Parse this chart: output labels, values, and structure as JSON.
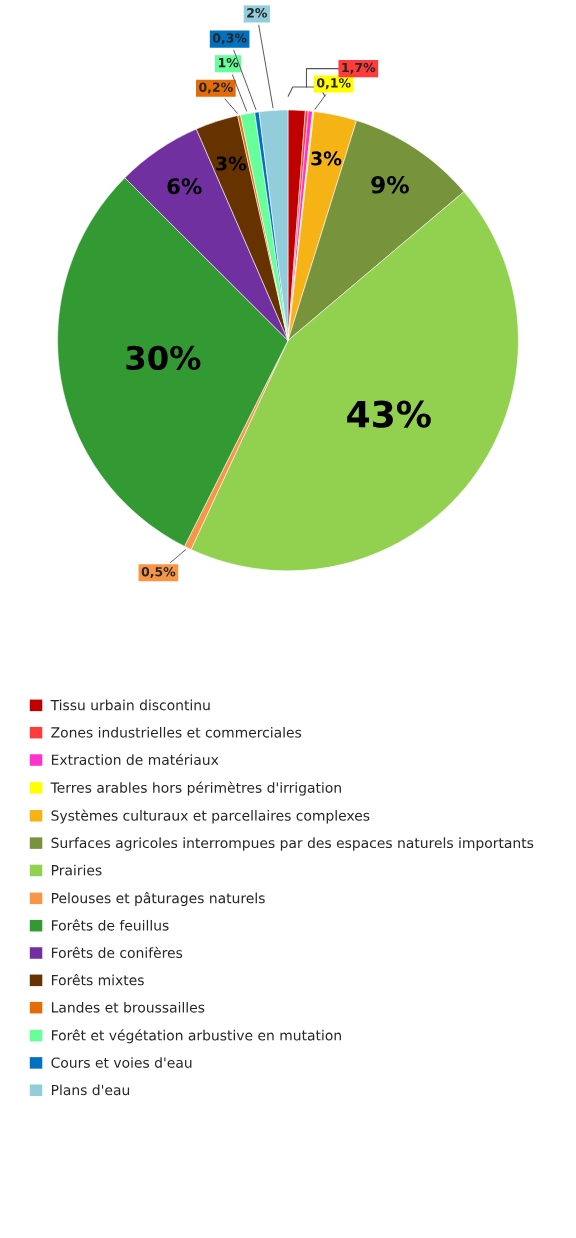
{
  "chart_data": {
    "type": "pie",
    "categories": [
      "Tissu urbain discontinu",
      "Zones industrielles et commerciales",
      "Extraction de matériaux",
      "Terres arables hors périmètres d'irrigation",
      "Systèmes culturaux et parcellaires complexes",
      "Surfaces agricoles interrompues par des espaces naturels importants",
      "Prairies",
      "Pelouses et pâturages naturels",
      "Forêts de feuillus",
      "Forêts de conifères",
      "Forêts mixtes",
      "Landes et broussailles",
      "Forêt et végétation arbustive en mutation",
      "Cours et voies d'eau",
      "Plans d'eau"
    ],
    "values": [
      1.2,
      0.2,
      0.3,
      0.1,
      3,
      9,
      43,
      0.5,
      30,
      6,
      3,
      0.2,
      1,
      0.3,
      2
    ],
    "colors": [
      "#c00000",
      "#ff3b3b",
      "#ff33cc",
      "#ffff00",
      "#f5b315",
      "#77933c",
      "#92d050",
      "#f79646",
      "#339933",
      "#7030a0",
      "#663300",
      "#e36c09",
      "#66ff99",
      "#0070c0",
      "#92cddc"
    ],
    "value_labels": [
      null,
      null,
      null,
      "0,1%",
      "3%",
      "9%",
      "43%",
      "0,5%",
      "30%",
      "6%",
      "3%",
      "0,2%",
      "1%",
      "0,3%",
      "2%"
    ],
    "annotations": [
      "1,7%"
    ],
    "legend": "bottom"
  }
}
